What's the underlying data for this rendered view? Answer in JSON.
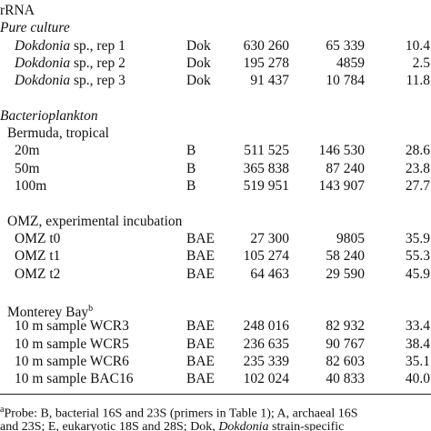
{
  "header": "rRNA",
  "pure_culture": {
    "title": "Pure culture",
    "rows": [
      [
        [
          "Dokdonia",
          " sp., rep 1"
        ],
        "Dok",
        "630 260",
        "65 339",
        "10.4"
      ],
      [
        [
          "Dokdonia",
          " sp., rep 2"
        ],
        "Dok",
        "195 278",
        "4859",
        "2.5"
      ],
      [
        [
          "Dokdonia",
          " sp., rep 3"
        ],
        "Dok",
        "91 437",
        "10 784",
        "11.8"
      ]
    ]
  },
  "bacterioplankton": {
    "title": "Bacterioplankton",
    "groups": [
      {
        "title": "Bermuda, tropical",
        "rows": [
          [
            "20m",
            "B",
            "511 525",
            "146 530",
            "28.6"
          ],
          [
            "50m",
            "B",
            "365 838",
            "87 240",
            "23.8"
          ],
          [
            "100m",
            "B",
            "519 951",
            "143 907",
            "27.7"
          ]
        ]
      },
      {
        "title": "OMZ, experimental incubation",
        "rows": [
          [
            "OMZ t0",
            "BAE",
            "27 300",
            "9805",
            "35.9"
          ],
          [
            "OMZ t1",
            "BAE",
            "105 274",
            "58 240",
            "55.3"
          ],
          [
            "OMZ t2",
            "BAE",
            "64 463",
            "29 590",
            "45.9"
          ]
        ]
      },
      {
        "title": "Monterey Bay",
        "note": "b",
        "rows": [
          [
            "10 m sample WCR3",
            "BAE",
            "248 016",
            "82 932",
            "33.4"
          ],
          [
            "10 m sample WCR5",
            "BAE",
            "236 635",
            "90 767",
            "38.4"
          ],
          [
            "10 m sample WCR6",
            "BAE",
            "235 339",
            "82 603",
            "35.1"
          ],
          [
            "10 m sample BAC16",
            "BAE",
            "102 024",
            "40 833",
            "40.0"
          ]
        ]
      }
    ]
  },
  "footnote": {
    "marker": "a",
    "line1": "Probe: B, bacterial 16S and 23S (primers in Table 1); A, archaeal 16S",
    "line2": [
      "and 23S; E, eukaryotic 18S and 28S; Dok, ",
      "Dokdonia",
      " strain-specific"
    ]
  }
}
